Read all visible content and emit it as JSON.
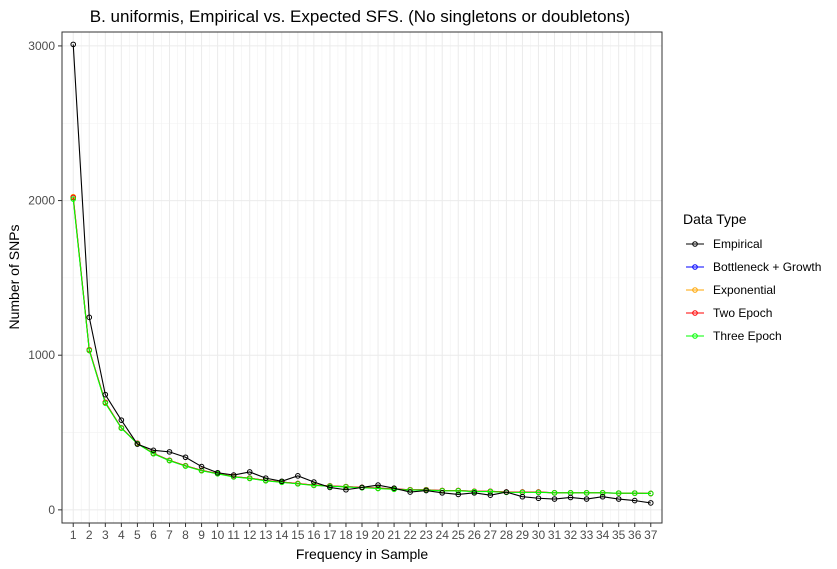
{
  "chart_data": {
    "type": "line",
    "title": "B. uniformis, Empirical vs. Expected SFS. (No singletons or doubletons)",
    "xlabel": "Frequency in Sample",
    "ylabel": "Number of SNPs",
    "x": [
      1,
      2,
      3,
      4,
      5,
      6,
      7,
      8,
      9,
      10,
      11,
      12,
      13,
      14,
      15,
      16,
      17,
      18,
      19,
      20,
      21,
      22,
      23,
      24,
      25,
      26,
      27,
      28,
      29,
      30,
      31,
      32,
      33,
      34,
      35,
      36,
      37
    ],
    "xlim": [
      0.3,
      37.7
    ],
    "ylim": [
      -85,
      3090
    ],
    "yticks": [
      0,
      1000,
      2000,
      3000
    ],
    "grid": true,
    "legend": {
      "title": "Data Type",
      "position": "right"
    },
    "series": [
      {
        "name": "Empirical",
        "color": "#000000",
        "values": [
          3010,
          1245,
          745,
          580,
          425,
          385,
          375,
          340,
          280,
          240,
          225,
          245,
          205,
          185,
          220,
          180,
          145,
          130,
          145,
          160,
          140,
          115,
          125,
          110,
          100,
          110,
          95,
          115,
          85,
          75,
          70,
          80,
          70,
          85,
          70,
          60,
          45
        ]
      },
      {
        "name": "Bottleneck + Growth",
        "color": "#0000ff",
        "values": [
          2020,
          1035,
          695,
          530,
          430,
          365,
          320,
          285,
          255,
          235,
          215,
          205,
          190,
          180,
          170,
          160,
          155,
          150,
          145,
          140,
          135,
          130,
          130,
          125,
          125,
          120,
          120,
          115,
          115,
          115,
          110,
          110,
          110,
          110,
          108,
          108,
          106
        ]
      },
      {
        "name": "Exponential",
        "color": "#ffa500",
        "values": [
          2025,
          1035,
          695,
          530,
          430,
          365,
          320,
          285,
          255,
          235,
          215,
          205,
          190,
          180,
          170,
          160,
          155,
          150,
          145,
          140,
          135,
          130,
          130,
          125,
          125,
          120,
          120,
          115,
          115,
          115,
          110,
          110,
          110,
          110,
          108,
          108,
          106
        ]
      },
      {
        "name": "Two Epoch",
        "color": "#ff0000",
        "values": [
          2020,
          1035,
          695,
          530,
          430,
          365,
          320,
          285,
          255,
          235,
          215,
          205,
          190,
          180,
          170,
          160,
          155,
          150,
          145,
          140,
          135,
          130,
          130,
          125,
          125,
          120,
          120,
          115,
          115,
          115,
          110,
          110,
          110,
          110,
          108,
          108,
          106
        ]
      },
      {
        "name": "Three Epoch",
        "color": "#00ff00",
        "values": [
          2010,
          1030,
          690,
          528,
          428,
          363,
          318,
          283,
          253,
          233,
          213,
          203,
          188,
          178,
          168,
          158,
          153,
          148,
          143,
          138,
          133,
          128,
          128,
          123,
          123,
          118,
          118,
          113,
          113,
          113,
          110,
          110,
          110,
          110,
          108,
          108,
          106
        ]
      }
    ]
  }
}
